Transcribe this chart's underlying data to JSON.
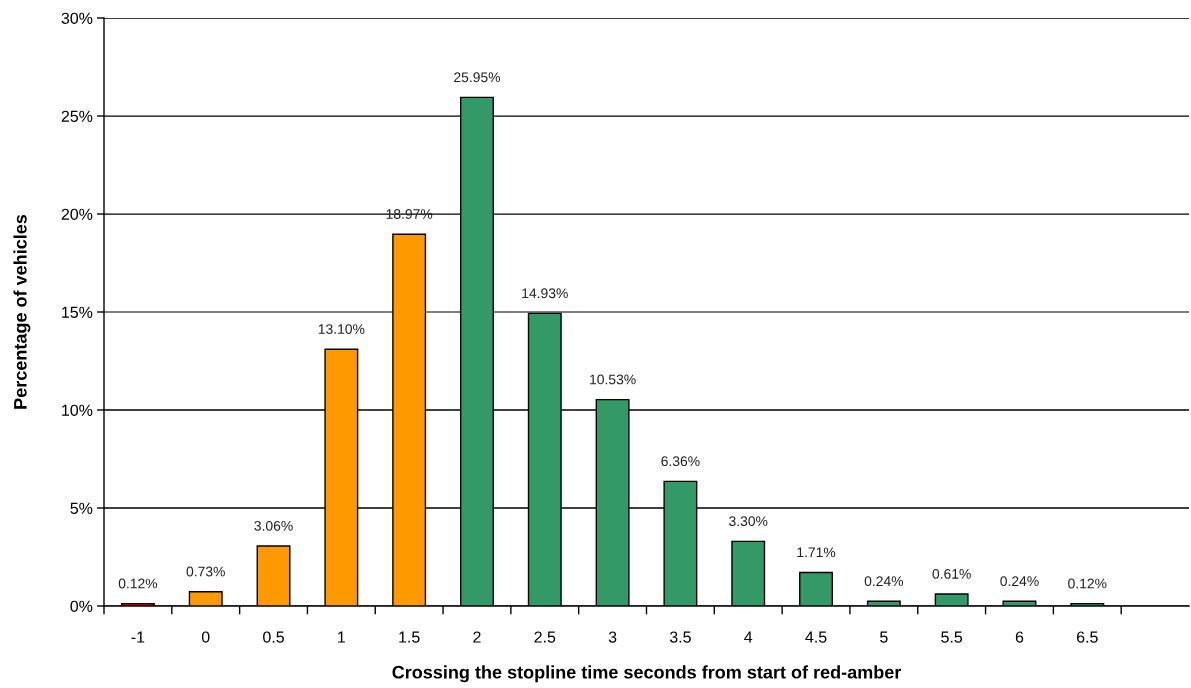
{
  "chart_data": {
    "type": "bar",
    "xlabel": "Crossing the stopline time seconds from start of red-amber",
    "ylabel": "Percentage of vehicles",
    "categories": [
      "-1",
      "0",
      "0.5",
      "1",
      "1.5",
      "2",
      "2.5",
      "3",
      "3.5",
      "4",
      "4.5",
      "5",
      "5.5",
      "6",
      "6.5",
      null
    ],
    "values": [
      0.12,
      0.73,
      3.06,
      13.1,
      18.97,
      25.95,
      14.93,
      10.53,
      6.36,
      3.3,
      1.71,
      0.24,
      0.61,
      0.24,
      0.12,
      null
    ],
    "colors": [
      "#e00000",
      "#ff9900",
      "#ff9900",
      "#ff9900",
      "#ff9900",
      "#339966",
      "#339966",
      "#339966",
      "#339966",
      "#339966",
      "#339966",
      "#339966",
      "#339966",
      "#339966",
      "#339966",
      "#339966"
    ],
    "value_labels": [
      "0.12%",
      "0.73%",
      "3.06%",
      "13.10%",
      "18.97%",
      "25.95%",
      "14.93%",
      "10.53%",
      "6.36%",
      "3.30%",
      "1.71%",
      "0.24%",
      "0.61%",
      "0.24%",
      "0.12%",
      null
    ],
    "ylim": [
      0,
      30
    ],
    "yticks": [
      {
        "value": 0,
        "label": "0%"
      },
      {
        "value": 5,
        "label": "5%"
      },
      {
        "value": 10,
        "label": "10%"
      },
      {
        "value": 15,
        "label": "15%"
      },
      {
        "value": 20,
        "label": "20%"
      },
      {
        "value": 25,
        "label": "25%"
      },
      {
        "value": 30,
        "label": "30%"
      }
    ],
    "grid": "y"
  }
}
